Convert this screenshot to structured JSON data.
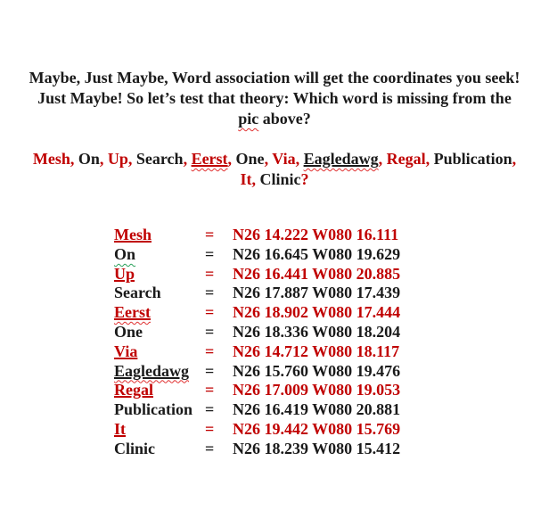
{
  "colors": {
    "accent_red": "#c00000",
    "text_black": "#1a1a1a",
    "squiggle_red": "#e03030",
    "squiggle_green": "#2aa05a",
    "background": "#ffffff"
  },
  "heading": {
    "line1": "Maybe, Just Maybe, Word association will get the coordinates you seek!",
    "line2": "Just Maybe! So let’s test that theory: Which word is missing from the",
    "line3_word": "pic",
    "line3_rest": " above?"
  },
  "word_list": {
    "line1": [
      {
        "text": "Mesh",
        "color": "red",
        "underline": false,
        "squiggle": null,
        "sep": ",",
        "sep_color": "red"
      },
      {
        "text": "On",
        "color": "black",
        "underline": false,
        "squiggle": null,
        "sep": ",",
        "sep_color": "red"
      },
      {
        "text": "Up",
        "color": "red",
        "underline": false,
        "squiggle": null,
        "sep": ",",
        "sep_color": "red"
      },
      {
        "text": "Search",
        "color": "black",
        "underline": false,
        "squiggle": null,
        "sep": ",",
        "sep_color": "red"
      },
      {
        "text": "Eerst",
        "color": "red",
        "underline": true,
        "squiggle": "red",
        "sep": ",",
        "sep_color": "red"
      },
      {
        "text": "One",
        "color": "black",
        "underline": false,
        "squiggle": null,
        "sep": ",",
        "sep_color": "red"
      },
      {
        "text": "Via",
        "color": "red",
        "underline": false,
        "squiggle": null,
        "sep": ",",
        "sep_color": "red"
      },
      {
        "text": "Eagledawg",
        "color": "black",
        "underline": true,
        "squiggle": "red",
        "sep": ",",
        "sep_color": "red"
      },
      {
        "text": "Regal",
        "color": "red",
        "underline": false,
        "squiggle": null,
        "sep": ",",
        "sep_color": "red"
      },
      {
        "text": "Publication",
        "color": "black",
        "underline": false,
        "squiggle": null,
        "sep": ",",
        "sep_color": "red"
      }
    ],
    "line2": [
      {
        "text": "It",
        "color": "red",
        "underline": false,
        "squiggle": null,
        "sep": ",",
        "sep_color": "red"
      },
      {
        "text": "Clinic",
        "color": "black",
        "underline": false,
        "squiggle": null,
        "sep": "?",
        "sep_color": "red"
      }
    ]
  },
  "coordinate_table": {
    "rows": [
      {
        "word": "Mesh",
        "eq": "=",
        "coords": "N26 14.222 W080 16.111",
        "color": "red",
        "underline": true,
        "squiggle": null
      },
      {
        "word": "On",
        "eq": "=",
        "coords": "N26 16.645 W080 19.629",
        "color": "black",
        "underline": false,
        "squiggle": "green"
      },
      {
        "word": "Up",
        "eq": "=",
        "coords": "N26 16.441 W080 20.885",
        "color": "red",
        "underline": true,
        "squiggle": null
      },
      {
        "word": "Search",
        "eq": "=",
        "coords": "N26 17.887 W080 17.439",
        "color": "black",
        "underline": false,
        "squiggle": null
      },
      {
        "word": "Eerst",
        "eq": "=",
        "coords": "N26 18.902 W080 17.444",
        "color": "red",
        "underline": true,
        "squiggle": "red"
      },
      {
        "word": "One",
        "eq": "=",
        "coords": "N26 18.336 W080 18.204",
        "color": "black",
        "underline": false,
        "squiggle": null
      },
      {
        "word": "Via",
        "eq": "=",
        "coords": "N26 14.712 W080 18.117",
        "color": "red",
        "underline": true,
        "squiggle": null
      },
      {
        "word": "Eagledawg",
        "eq": "=",
        "coords": "N26 15.760 W080 19.476",
        "color": "black",
        "underline": true,
        "squiggle": "red"
      },
      {
        "word": "Regal",
        "eq": "=",
        "coords": "N26 17.009 W080 19.053",
        "color": "red",
        "underline": true,
        "squiggle": null
      },
      {
        "word": "Publication",
        "eq": "=",
        "coords": "N26 16.419 W080 20.881",
        "color": "black",
        "underline": false,
        "squiggle": null
      },
      {
        "word": "It",
        "eq": "=",
        "coords": "N26 19.442 W080 15.769",
        "color": "red",
        "underline": true,
        "squiggle": null
      },
      {
        "word": "Clinic",
        "eq": "=",
        "coords": "N26 18.239 W080 15.412",
        "color": "black",
        "underline": false,
        "squiggle": null
      }
    ]
  }
}
